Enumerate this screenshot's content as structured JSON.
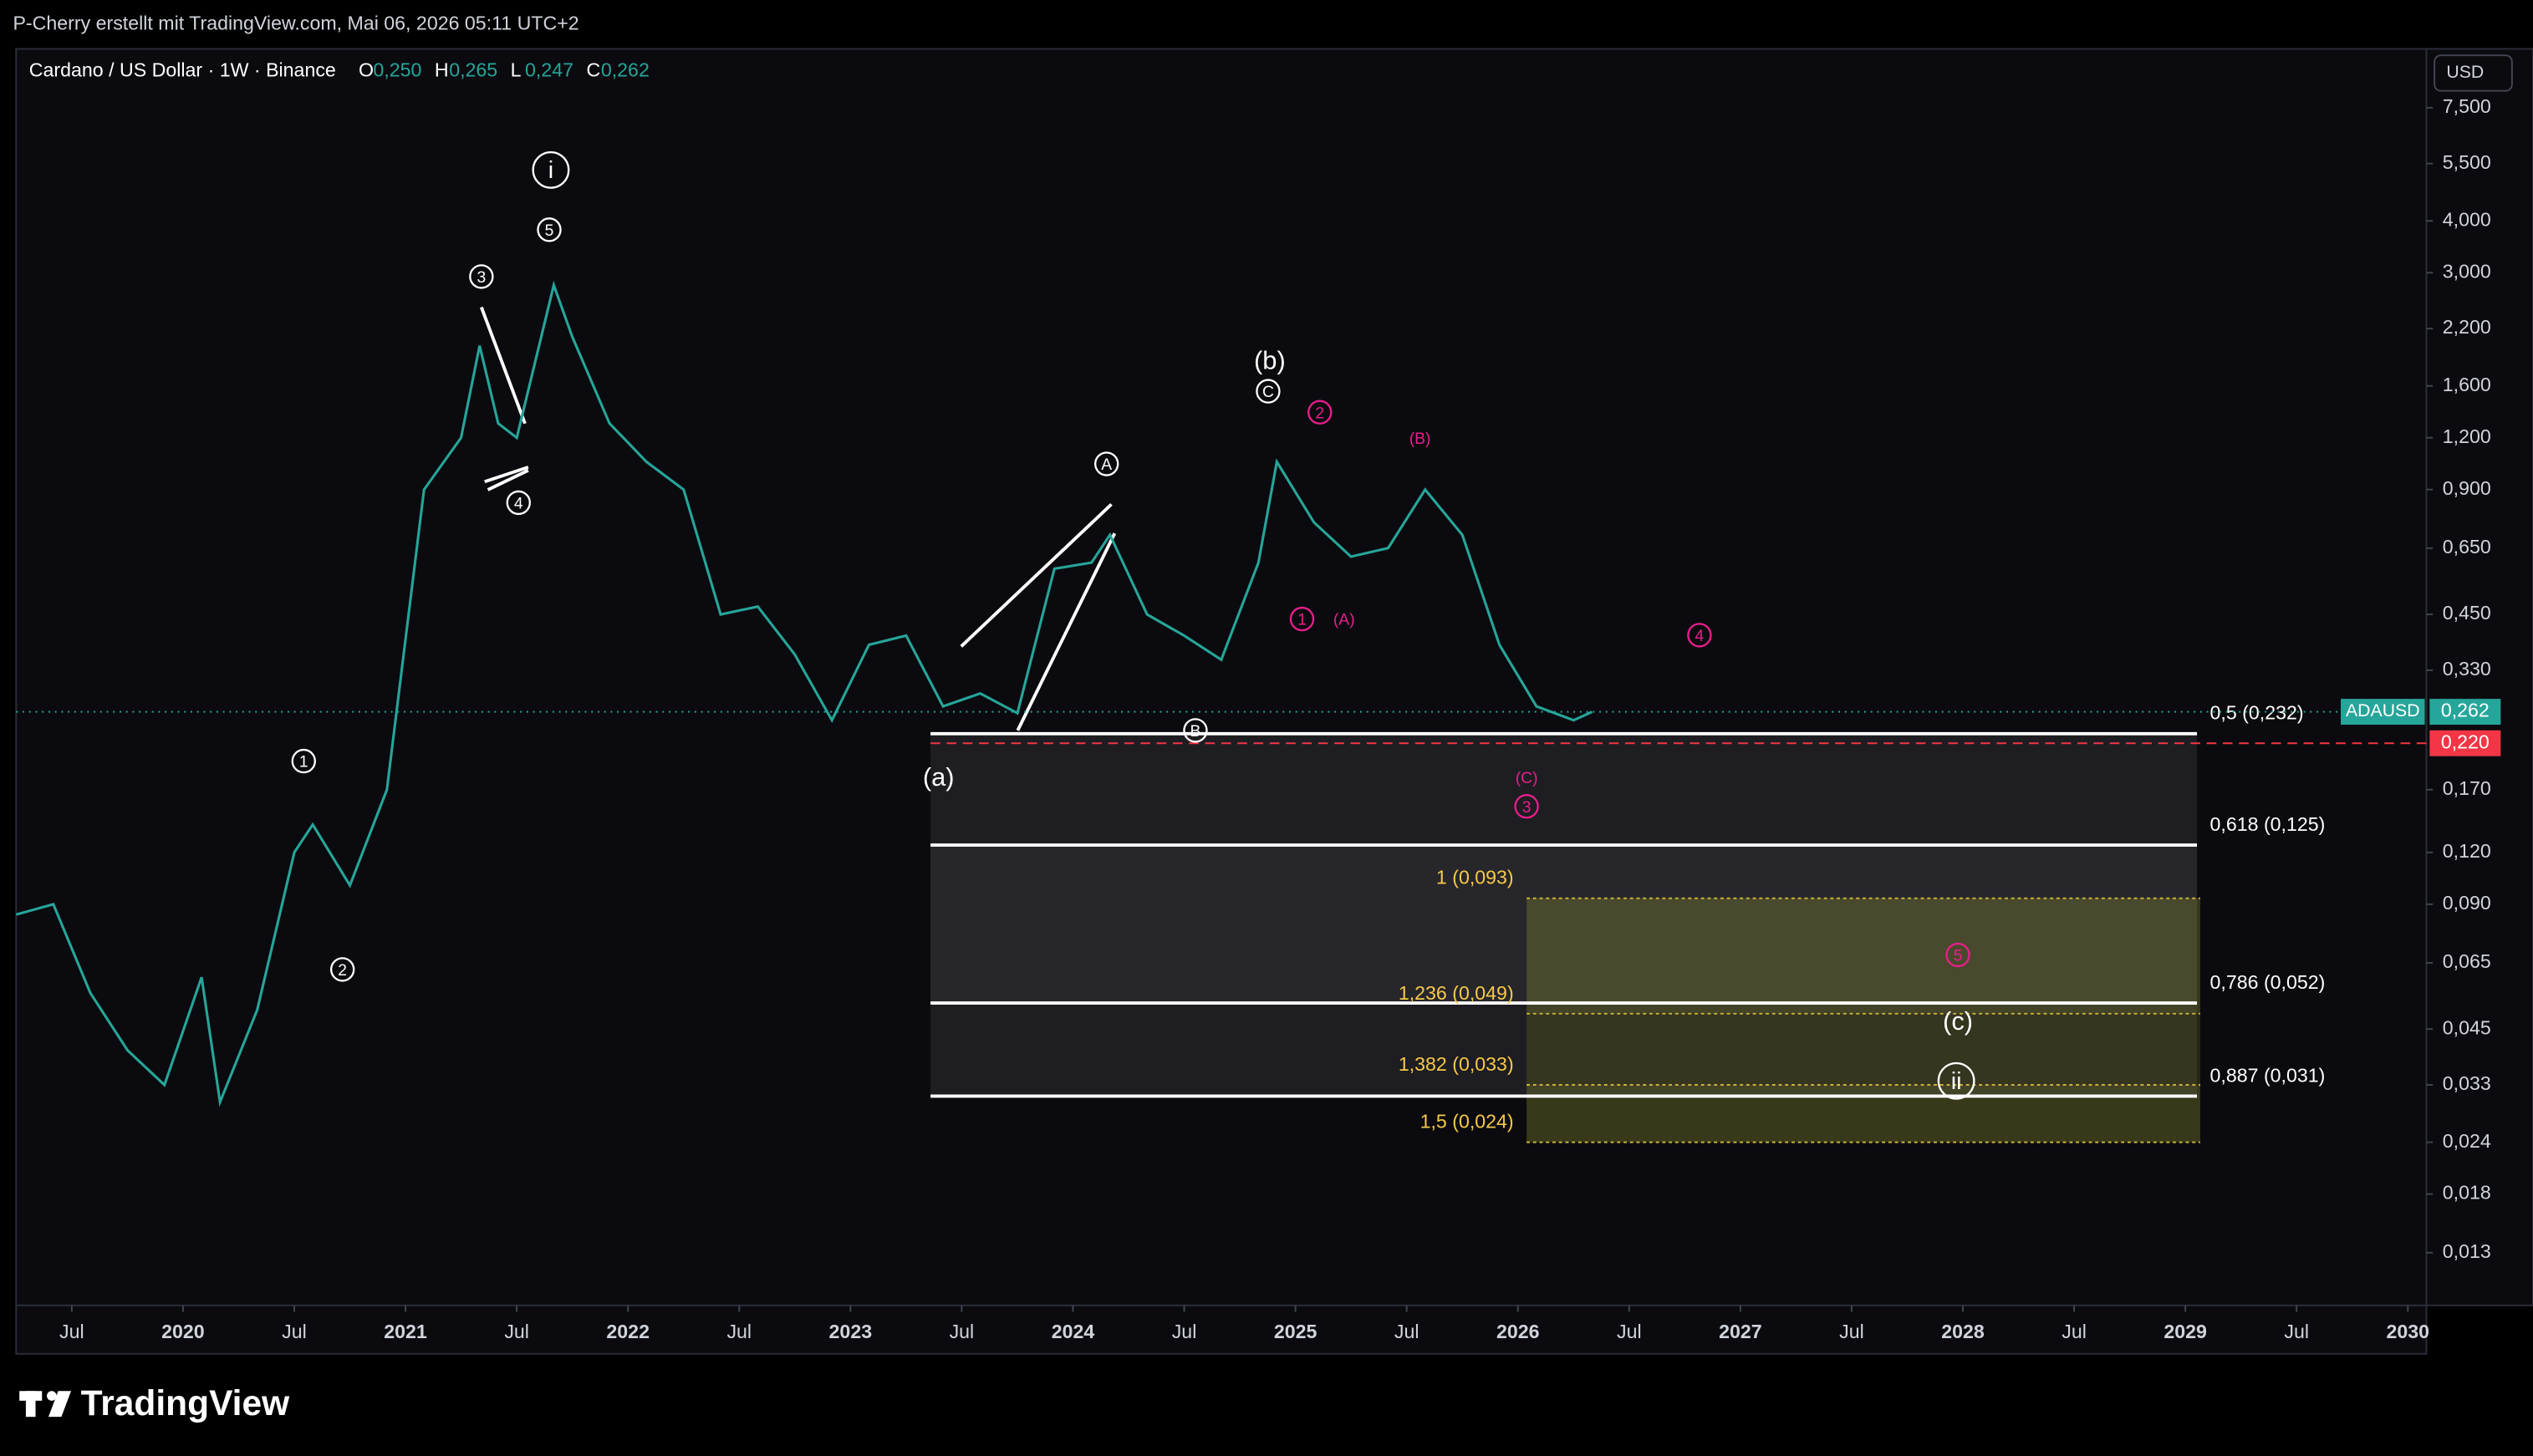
{
  "header": {
    "title": "P-Cherry erstellt mit TradingView.com, Mai 06, 2026 05:11 UTC+2"
  },
  "footer": {
    "brand": "TradingView"
  },
  "chart_data": {
    "type": "line",
    "title": "Cardano / US Dollar · 1W · Binance",
    "ohlc": [
      {
        "key": "O",
        "label": "0,250"
      },
      {
        "key": "H",
        "label": "0,265"
      },
      {
        "key": "L",
        "label": "0,247"
      },
      {
        "key": "C",
        "label": "0,262"
      }
    ],
    "currency": "USD",
    "x": [
      "2019-04",
      "2019-06",
      "2019-08",
      "2019-10",
      "2019-12",
      "2020-02",
      "2020-03",
      "2020-05",
      "2020-07",
      "2020-08",
      "2020-10",
      "2020-12",
      "2021-02",
      "2021-04",
      "2021-05",
      "2021-06",
      "2021-07",
      "2021-09",
      "2021-10",
      "2021-12",
      "2022-02",
      "2022-04",
      "2022-06",
      "2022-08",
      "2022-10",
      "2022-12",
      "2023-02",
      "2023-04",
      "2023-06",
      "2023-08",
      "2023-10",
      "2023-12",
      "2024-02",
      "2024-03",
      "2024-05",
      "2024-07",
      "2024-09",
      "2024-11",
      "2024-12",
      "2025-02",
      "2025-04",
      "2025-06",
      "2025-08",
      "2025-10",
      "2025-12",
      "2026-02",
      "2026-04",
      "2026-05"
    ],
    "series": [
      {
        "name": "ADAUSD",
        "color": "#26a69a",
        "values": [
          0.085,
          0.09,
          0.055,
          0.04,
          0.033,
          0.06,
          0.03,
          0.05,
          0.12,
          0.14,
          0.1,
          0.17,
          0.9,
          1.2,
          2.0,
          1.3,
          1.2,
          2.8,
          2.1,
          1.3,
          1.05,
          0.9,
          0.45,
          0.47,
          0.36,
          0.25,
          0.38,
          0.4,
          0.27,
          0.29,
          0.26,
          0.58,
          0.6,
          0.7,
          0.45,
          0.4,
          0.35,
          0.6,
          1.05,
          0.75,
          0.62,
          0.65,
          0.9,
          0.7,
          0.38,
          0.27,
          0.25,
          0.262
        ]
      }
    ],
    "last_price": {
      "value": 0.262,
      "label": "0,262"
    },
    "alert_line": {
      "value": 0.22,
      "label": "0,220",
      "color": "#f23645"
    },
    "fib_levels": [
      {
        "value": 0.232,
        "label": "0,5 (0,232)"
      },
      {
        "value": 0.125,
        "label": "0,618 (0,125)"
      },
      {
        "value": 0.052,
        "label": "0,786 (0,052)"
      },
      {
        "value": 0.031,
        "label": "0,887 (0,031)"
      }
    ],
    "fib_extensions": [
      {
        "value": 0.093,
        "label": "1 (0,093)"
      },
      {
        "value": 0.049,
        "label": "1,236 (0,049)"
      },
      {
        "value": 0.033,
        "label": "1,382 (0,033)"
      },
      {
        "value": 0.024,
        "label": "1,5 (0,024)"
      }
    ],
    "wave_labels": [
      {
        "text": "i",
        "color": "#ffffff"
      },
      {
        "text": "5",
        "color": "#ffffff"
      },
      {
        "text": "3",
        "color": "#ffffff"
      },
      {
        "text": "4",
        "color": "#ffffff"
      },
      {
        "text": "1",
        "color": "#ffffff"
      },
      {
        "text": "2",
        "color": "#ffffff"
      },
      {
        "text": "(a)",
        "color": "#ffffff"
      },
      {
        "text": "A",
        "color": "#ffffff"
      },
      {
        "text": "B",
        "color": "#ffffff"
      },
      {
        "text": "(b)",
        "color": "#ffffff"
      },
      {
        "text": "C",
        "color": "#ffffff"
      },
      {
        "text": "2",
        "color": "#e91e8c"
      },
      {
        "text": "1",
        "color": "#e91e8c"
      },
      {
        "text": "(A)",
        "color": "#e91e8c"
      },
      {
        "text": "(B)",
        "color": "#e91e8c"
      },
      {
        "text": "4",
        "color": "#e91e8c"
      },
      {
        "text": "(C)",
        "color": "#e91e8c"
      },
      {
        "text": "3",
        "color": "#e91e8c"
      },
      {
        "text": "5",
        "color": "#e91e8c"
      },
      {
        "text": "(c)",
        "color": "#ffffff"
      },
      {
        "text": "ii",
        "color": "#ffffff"
      }
    ],
    "log_scale": true,
    "grid": false,
    "xlim": [
      "2019-04",
      "2030-02"
    ],
    "xticks": [
      {
        "value": "2019-07",
        "label": "Jul"
      },
      {
        "value": "2020-01",
        "label": "2020"
      },
      {
        "value": "2020-07",
        "label": "Jul"
      },
      {
        "value": "2021-01",
        "label": "2021"
      },
      {
        "value": "2021-07",
        "label": "Jul"
      },
      {
        "value": "2022-01",
        "label": "2022"
      },
      {
        "value": "2022-07",
        "label": "Jul"
      },
      {
        "value": "2023-01",
        "label": "2023"
      },
      {
        "value": "2023-07",
        "label": "Jul"
      },
      {
        "value": "2024-01",
        "label": "2024"
      },
      {
        "value": "2024-07",
        "label": "Jul"
      },
      {
        "value": "2025-01",
        "label": "2025"
      },
      {
        "value": "2025-07",
        "label": "Jul"
      },
      {
        "value": "2026-01",
        "label": "2026"
      },
      {
        "value": "2026-07",
        "label": "Jul"
      },
      {
        "value": "2027-01",
        "label": "2027"
      },
      {
        "value": "2027-07",
        "label": "Jul"
      },
      {
        "value": "2028-01",
        "label": "2028"
      },
      {
        "value": "2028-07",
        "label": "Jul"
      },
      {
        "value": "2029-01",
        "label": "2029"
      },
      {
        "value": "2029-07",
        "label": "Jul"
      },
      {
        "value": "2030-01",
        "label": "2030"
      }
    ],
    "ylim": [
      0.0097,
      10.4
    ],
    "yticks": [
      {
        "value": 7.5,
        "label": "7,500"
      },
      {
        "value": 5.5,
        "label": "5,500"
      },
      {
        "value": 4,
        "label": "4,000"
      },
      {
        "value": 3,
        "label": "3,000"
      },
      {
        "value": 2.2,
        "label": "2,200"
      },
      {
        "value": 1.6,
        "label": "1,600"
      },
      {
        "value": 1.2,
        "label": "1,200"
      },
      {
        "value": 0.9,
        "label": "0,900"
      },
      {
        "value": 0.65,
        "label": "0,650"
      },
      {
        "value": 0.45,
        "label": "0,450"
      },
      {
        "value": 0.33,
        "label": "0,330"
      },
      {
        "value": 0.17,
        "label": "0,170"
      },
      {
        "value": 0.12,
        "label": "0,120"
      },
      {
        "value": 0.09,
        "label": "0,090"
      },
      {
        "value": 0.065,
        "label": "0,065"
      },
      {
        "value": 0.045,
        "label": "0,045"
      },
      {
        "value": 0.033,
        "label": "0,033"
      },
      {
        "value": 0.024,
        "label": "0,024"
      },
      {
        "value": 0.018,
        "label": "0,018"
      },
      {
        "value": 0.013,
        "label": "0,013"
      }
    ]
  }
}
